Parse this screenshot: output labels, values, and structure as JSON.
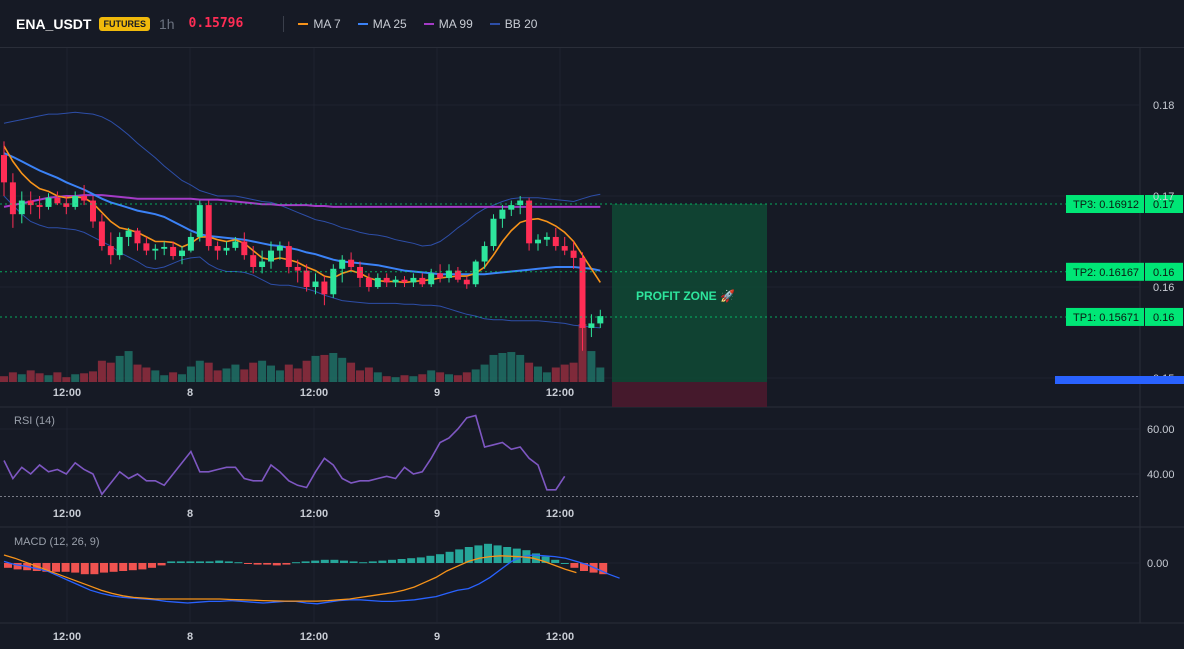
{
  "header": {
    "symbol": "ENA_USDT",
    "badge": "FUTURES",
    "timeframe": "1h",
    "last_price": "0.15796"
  },
  "legend": [
    {
      "label": "MA 7",
      "color": "#f7931a"
    },
    {
      "label": "MA 25",
      "color": "#3b82f6"
    },
    {
      "label": "MA 99",
      "color": "#a43bc7"
    },
    {
      "label": "BB 20",
      "color": "#2d4ea8"
    }
  ],
  "colors": {
    "up": "#26a69a",
    "down": "#ef5350",
    "bull_candle": "#2ee59d",
    "bear_candle": "#ff2d55",
    "tp": "#00e676"
  },
  "price_axis": {
    "ticks": [
      "0.18",
      "0.17",
      "0.16",
      "0.15"
    ]
  },
  "time_axis": [
    "12:00",
    "8",
    "12:00",
    "9",
    "12:00"
  ],
  "targets": [
    {
      "label": "TP3: 0.16912",
      "axis": "0.17",
      "price": 0.16912
    },
    {
      "label": "TP2: 0.16167",
      "axis": "0.16",
      "price": 0.16167
    },
    {
      "label": "TP1: 0.15671",
      "axis": "0.16",
      "price": 0.15671
    }
  ],
  "profit_zone": {
    "label": "PROFIT ZONE 🚀"
  },
  "rsi": {
    "title": "RSI (14)",
    "ticks": [
      "60.00",
      "40.00"
    ]
  },
  "macd": {
    "title": "MACD (12, 26, 9)",
    "ticks": [
      "0.00"
    ]
  },
  "chart_data": [
    {
      "type": "candlestick",
      "title": "ENA_USDT 1h",
      "yrange": [
        0.148,
        0.185
      ],
      "ohlc": [
        [
          0.1745,
          0.176,
          0.17,
          0.1715
        ],
        [
          0.1715,
          0.1725,
          0.1665,
          0.168
        ],
        [
          0.168,
          0.1705,
          0.167,
          0.1695
        ],
        [
          0.1695,
          0.1705,
          0.168,
          0.169
        ],
        [
          0.169,
          0.17,
          0.1675,
          0.1688
        ],
        [
          0.1688,
          0.1703,
          0.1685,
          0.1698
        ],
        [
          0.1698,
          0.1705,
          0.169,
          0.1692
        ],
        [
          0.1692,
          0.17,
          0.168,
          0.1688
        ],
        [
          0.1688,
          0.1705,
          0.1685,
          0.17
        ],
        [
          0.17,
          0.1712,
          0.169,
          0.1695
        ],
        [
          0.1695,
          0.17,
          0.1665,
          0.1672
        ],
        [
          0.1672,
          0.168,
          0.164,
          0.1645
        ],
        [
          0.1645,
          0.166,
          0.1625,
          0.1635
        ],
        [
          0.1635,
          0.166,
          0.163,
          0.1655
        ],
        [
          0.1655,
          0.1665,
          0.1645,
          0.1662
        ],
        [
          0.1662,
          0.1665,
          0.164,
          0.1648
        ],
        [
          0.1648,
          0.1655,
          0.1635,
          0.164
        ],
        [
          0.164,
          0.1647,
          0.163,
          0.1642
        ],
        [
          0.1642,
          0.165,
          0.1635,
          0.1644
        ],
        [
          0.1644,
          0.165,
          0.163,
          0.1634
        ],
        [
          0.1634,
          0.1645,
          0.1625,
          0.164
        ],
        [
          0.164,
          0.166,
          0.1638,
          0.1655
        ],
        [
          0.1655,
          0.1695,
          0.165,
          0.169
        ],
        [
          0.169,
          0.1695,
          0.164,
          0.1645
        ],
        [
          0.1645,
          0.165,
          0.163,
          0.164
        ],
        [
          0.164,
          0.165,
          0.1635,
          0.1643
        ],
        [
          0.1643,
          0.1655,
          0.164,
          0.165
        ],
        [
          0.165,
          0.166,
          0.163,
          0.1635
        ],
        [
          0.1635,
          0.1645,
          0.1615,
          0.1622
        ],
        [
          0.1622,
          0.164,
          0.1615,
          0.1628
        ],
        [
          0.1628,
          0.165,
          0.162,
          0.164
        ],
        [
          0.164,
          0.165,
          0.163,
          0.1645
        ],
        [
          0.1645,
          0.165,
          0.1615,
          0.1622
        ],
        [
          0.1622,
          0.163,
          0.1605,
          0.1618
        ],
        [
          0.1618,
          0.1625,
          0.1595,
          0.16
        ],
        [
          0.16,
          0.1615,
          0.1592,
          0.1606
        ],
        [
          0.1606,
          0.1612,
          0.158,
          0.1592
        ],
        [
          0.1592,
          0.1625,
          0.1588,
          0.162
        ],
        [
          0.162,
          0.1635,
          0.1605,
          0.163
        ],
        [
          0.163,
          0.1638,
          0.1618,
          0.1622
        ],
        [
          0.1622,
          0.1628,
          0.16,
          0.161
        ],
        [
          0.161,
          0.1615,
          0.1595,
          0.16
        ],
        [
          0.16,
          0.1615,
          0.1598,
          0.161
        ],
        [
          0.161,
          0.1615,
          0.16,
          0.1605
        ],
        [
          0.1605,
          0.1612,
          0.16,
          0.1608
        ],
        [
          0.1608,
          0.1612,
          0.16,
          0.1605
        ],
        [
          0.1605,
          0.1615,
          0.16,
          0.161
        ],
        [
          0.161,
          0.1615,
          0.16,
          0.1603
        ],
        [
          0.1603,
          0.162,
          0.16,
          0.1615
        ],
        [
          0.1615,
          0.1625,
          0.1605,
          0.161
        ],
        [
          0.161,
          0.1625,
          0.1605,
          0.1618
        ],
        [
          0.1618,
          0.1622,
          0.1605,
          0.1608
        ],
        [
          0.1608,
          0.1612,
          0.1598,
          0.1603
        ],
        [
          0.1603,
          0.163,
          0.16,
          0.1628
        ],
        [
          0.1628,
          0.165,
          0.162,
          0.1645
        ],
        [
          0.1645,
          0.168,
          0.164,
          0.1675
        ],
        [
          0.1675,
          0.169,
          0.1665,
          0.1685
        ],
        [
          0.1685,
          0.1695,
          0.1678,
          0.169
        ],
        [
          0.169,
          0.17,
          0.168,
          0.1695
        ],
        [
          0.1695,
          0.1698,
          0.164,
          0.1648
        ],
        [
          0.1648,
          0.1658,
          0.164,
          0.1652
        ],
        [
          0.1652,
          0.166,
          0.1645,
          0.1655
        ],
        [
          0.1655,
          0.1665,
          0.164,
          0.1645
        ],
        [
          0.1645,
          0.1655,
          0.1635,
          0.164
        ],
        [
          0.164,
          0.165,
          0.162,
          0.1632
        ],
        [
          0.1632,
          0.1638,
          0.153,
          0.1555
        ],
        [
          0.1555,
          0.157,
          0.1545,
          0.156
        ],
        [
          0.156,
          0.1575,
          0.1555,
          0.1568
        ]
      ],
      "volume": [
        6,
        10,
        8,
        12,
        9,
        7,
        10,
        5,
        8,
        9,
        11,
        22,
        20,
        27,
        32,
        18,
        15,
        12,
        7,
        10,
        8,
        16,
        22,
        20,
        12,
        14,
        18,
        13,
        20,
        22,
        17,
        12,
        18,
        14,
        22,
        27,
        28,
        30,
        25,
        20,
        12,
        15,
        10,
        6,
        5,
        7,
        6,
        8,
        12,
        10,
        8,
        7,
        10,
        13,
        18,
        28,
        30,
        31,
        28,
        20,
        16,
        10,
        15,
        18,
        20,
        60,
        32,
        15
      ],
      "ma7": [
        0.1755,
        0.1738,
        0.1725,
        0.1715,
        0.1708,
        0.1705,
        0.17,
        0.1698,
        0.1699,
        0.1698,
        0.1692,
        0.1682,
        0.1672,
        0.1665,
        0.1663,
        0.166,
        0.1655,
        0.165,
        0.165,
        0.1649,
        0.1644,
        0.1648,
        0.1655,
        0.1655,
        0.1652,
        0.165,
        0.1652,
        0.1648,
        0.164,
        0.1632,
        0.163,
        0.1632,
        0.163,
        0.1627,
        0.1622,
        0.1618,
        0.1612,
        0.161,
        0.1615,
        0.1618,
        0.1615,
        0.161,
        0.1607,
        0.1606,
        0.1606,
        0.1605,
        0.1606,
        0.1607,
        0.1608,
        0.161,
        0.1611,
        0.1612,
        0.1612,
        0.1615,
        0.1622,
        0.1635,
        0.165,
        0.1662,
        0.1671,
        0.1674,
        0.1675,
        0.1672,
        0.1667,
        0.166,
        0.165,
        0.1635,
        0.162,
        0.1605
      ],
      "ma25": [
        0.1747,
        0.1743,
        0.1738,
        0.1733,
        0.1728,
        0.1724,
        0.172,
        0.1715,
        0.1711,
        0.1707,
        0.1702,
        0.1697,
        0.1693,
        0.169,
        0.1687,
        0.1684,
        0.1682,
        0.168,
        0.1677,
        0.1672,
        0.1667,
        0.1662,
        0.1658,
        0.1656,
        0.1655,
        0.1654,
        0.1653,
        0.1652,
        0.165,
        0.1648,
        0.1646,
        0.1645,
        0.1643,
        0.1641,
        0.1638,
        0.1636,
        0.1633,
        0.163,
        0.1628,
        0.1627,
        0.1626,
        0.1625,
        0.1624,
        0.1622,
        0.162,
        0.1618,
        0.1617,
        0.1616,
        0.1615,
        0.1614,
        0.1614,
        0.1614,
        0.1614,
        0.1614,
        0.1614,
        0.1615,
        0.1616,
        0.1617,
        0.1618,
        0.1619,
        0.162,
        0.1621,
        0.1622,
        0.1622,
        0.1622,
        0.1621,
        0.162,
        0.1618
      ],
      "ma99": [
        0.1688,
        0.169,
        0.1692,
        0.1694,
        0.1696,
        0.1698,
        0.1699,
        0.17,
        0.17,
        0.1701,
        0.1701,
        0.1701,
        0.17,
        0.1699,
        0.1698,
        0.1697,
        0.1697,
        0.1697,
        0.1697,
        0.1697,
        0.1697,
        0.1697,
        0.1696,
        0.1696,
        0.1696,
        0.1695,
        0.1694,
        0.1693,
        0.1692,
        0.1691,
        0.1691,
        0.169,
        0.169,
        0.169,
        0.169,
        0.1689,
        0.1689,
        0.1688,
        0.1688,
        0.1688,
        0.1688,
        0.1688,
        0.1688,
        0.1688,
        0.1688,
        0.1688,
        0.1688,
        0.1688,
        0.1688,
        0.1688,
        0.1688,
        0.1688,
        0.1688,
        0.1688,
        0.1688,
        0.1688,
        0.1688,
        0.1688,
        0.1688,
        0.1688,
        0.1688,
        0.1688,
        0.1688,
        0.1688,
        0.1688,
        0.1688,
        0.1688,
        0.1688
      ],
      "bb_upper": [
        0.178,
        0.1782,
        0.1784,
        0.1786,
        0.1788,
        0.179,
        0.179,
        0.1791,
        0.1792,
        0.1791,
        0.179,
        0.1787,
        0.1782,
        0.1775,
        0.1767,
        0.1758,
        0.175,
        0.1742,
        0.1733,
        0.1725,
        0.1717,
        0.1712,
        0.1706,
        0.1703,
        0.17,
        0.17,
        0.17,
        0.1698,
        0.1696,
        0.1694,
        0.1693,
        0.169,
        0.1686,
        0.1682,
        0.1678,
        0.1674,
        0.1672,
        0.1669,
        0.1665,
        0.1663,
        0.166,
        0.1658,
        0.1657,
        0.1655,
        0.1652,
        0.165,
        0.1648,
        0.1645,
        0.1646,
        0.165,
        0.1657,
        0.1665,
        0.1672,
        0.168,
        0.1686,
        0.169,
        0.1694,
        0.1697,
        0.1698,
        0.1698,
        0.1698,
        0.1697,
        0.1696,
        0.1695,
        0.1694,
        0.1697,
        0.17,
        0.1702
      ],
      "bb_lower": [
        0.17,
        0.169,
        0.168,
        0.1672,
        0.1668,
        0.1665,
        0.1665,
        0.1664,
        0.1663,
        0.166,
        0.1655,
        0.165,
        0.1645,
        0.1638,
        0.1633,
        0.1628,
        0.1622,
        0.162,
        0.1622,
        0.1626,
        0.163,
        0.1632,
        0.1633,
        0.1625,
        0.162,
        0.1617,
        0.1617,
        0.1616,
        0.1613,
        0.1608,
        0.1603,
        0.1602,
        0.1602,
        0.16,
        0.1598,
        0.1595,
        0.1591,
        0.1588,
        0.1585,
        0.1584,
        0.1583,
        0.1582,
        0.1582,
        0.1582,
        0.1582,
        0.1581,
        0.1581,
        0.158,
        0.158,
        0.1579,
        0.1576,
        0.1573,
        0.157,
        0.1568,
        0.1565,
        0.1564,
        0.1564,
        0.1563,
        0.1563,
        0.1563,
        0.1563,
        0.1562,
        0.1561,
        0.156,
        0.1558,
        0.1557,
        0.1556,
        0.1555
      ]
    },
    {
      "type": "line",
      "title": "RSI (14)",
      "ylim": [
        25,
        70
      ],
      "reference_lines": [
        30
      ],
      "values": [
        46,
        38,
        43,
        40,
        44,
        41,
        42,
        40,
        45,
        42,
        40,
        31,
        36,
        41,
        38,
        40,
        37,
        37,
        35,
        40,
        45,
        50,
        41,
        41,
        42,
        43,
        43,
        38,
        37,
        37,
        44,
        41,
        37,
        35,
        34,
        41,
        47,
        44,
        38,
        36,
        37,
        37,
        38,
        39,
        38,
        43,
        40,
        41,
        47,
        54,
        56,
        60,
        65,
        66,
        52,
        53,
        54,
        51,
        52,
        47,
        44,
        33,
        33,
        39
      ]
    },
    {
      "type": "bar",
      "title": "MACD (12, 26, 9)",
      "histogram": [
        -0.3,
        -0.4,
        -0.45,
        -0.5,
        -0.55,
        -0.55,
        -0.55,
        -0.6,
        -0.7,
        -0.7,
        -0.6,
        -0.55,
        -0.5,
        -0.45,
        -0.4,
        -0.3,
        -0.15,
        0.1,
        0.1,
        0.1,
        0.1,
        0.1,
        0.15,
        0.1,
        0.05,
        -0.05,
        -0.1,
        -0.1,
        -0.15,
        -0.1,
        0.05,
        0.1,
        0.15,
        0.2,
        0.2,
        0.15,
        0.1,
        0.05,
        0.1,
        0.15,
        0.2,
        0.25,
        0.3,
        0.35,
        0.45,
        0.55,
        0.7,
        0.85,
        1.0,
        1.1,
        1.2,
        1.1,
        1.0,
        0.9,
        0.8,
        0.6,
        0.4,
        0.2,
        0.0,
        -0.3,
        -0.5,
        -0.6,
        -0.7
      ],
      "macd": [
        0.1,
        -0.1,
        -0.2,
        -0.35,
        -0.5,
        -0.8,
        -1.1,
        -1.4,
        -1.7,
        -1.9,
        -2.05,
        -2.15,
        -2.2,
        -2.25,
        -2.3,
        -2.4,
        -2.45,
        -2.5,
        -2.45,
        -2.4,
        -2.4,
        -2.35,
        -2.4,
        -2.45,
        -2.5,
        -2.45,
        -2.4,
        -2.4,
        -2.5,
        -2.55,
        -2.45,
        -2.35,
        -2.3,
        -2.3,
        -2.35,
        -2.4,
        -2.4,
        -2.35,
        -2.3,
        -2.2,
        -2.1,
        -1.9,
        -1.7,
        -1.6,
        -1.3,
        -0.9,
        -0.4,
        0.1,
        0.4,
        0.5,
        0.45,
        0.4,
        0.3,
        0.1,
        -0.1,
        -0.4,
        -0.7,
        -0.95
      ],
      "signal": [
        0.5,
        0.3,
        0.05,
        -0.2,
        -0.45,
        -0.7,
        -0.95,
        -1.2,
        -1.45,
        -1.7,
        -1.9,
        -2.05,
        -2.15,
        -2.2,
        -2.25,
        -2.25,
        -2.25,
        -2.25,
        -2.25,
        -2.25,
        -2.25,
        -2.28,
        -2.3,
        -2.32,
        -2.35,
        -2.37,
        -2.38,
        -2.38,
        -2.38,
        -2.38,
        -2.35,
        -2.3,
        -2.25,
        -2.15,
        -2.05,
        -1.95,
        -1.85,
        -1.7,
        -1.5,
        -1.2,
        -0.9,
        -0.5,
        -0.2,
        0.1,
        0.3,
        0.4,
        0.45,
        0.42,
        0.38,
        0.3,
        0.1,
        -0.15,
        -0.4,
        -0.6
      ]
    }
  ]
}
